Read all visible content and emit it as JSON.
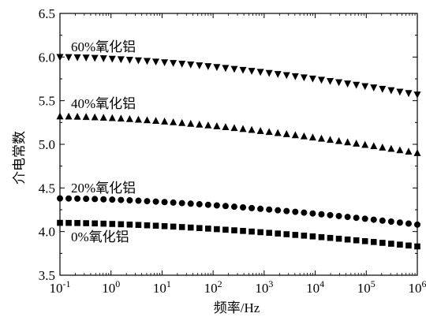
{
  "chart_data": {
    "type": "scatter",
    "title": "",
    "xlabel": "频率/Hz",
    "ylabel": "介电常数",
    "xscale": "log",
    "xlim": [
      0.1,
      1000000
    ],
    "ylim": [
      3.5,
      6.5
    ],
    "grid": false,
    "legend": "none (inline series labels)",
    "x_ticks": [
      {
        "value": 0.1,
        "base": "10",
        "exp": "-1"
      },
      {
        "value": 1,
        "base": "10",
        "exp": "0"
      },
      {
        "value": 10,
        "base": "10",
        "exp": "1"
      },
      {
        "value": 100,
        "base": "10",
        "exp": "2"
      },
      {
        "value": 1000,
        "base": "10",
        "exp": "3"
      },
      {
        "value": 10000,
        "base": "10",
        "exp": "4"
      },
      {
        "value": 100000,
        "base": "10",
        "exp": "5"
      },
      {
        "value": 1000000,
        "base": "10",
        "exp": "6"
      }
    ],
    "y_ticks": [
      "3.5",
      "4.0",
      "4.5",
      "5.0",
      "5.5",
      "6.0",
      "6.5"
    ],
    "series": [
      {
        "name": "60%氧化铝",
        "marker": "triangle-down",
        "y_start": 6.0,
        "y_end": 5.57
      },
      {
        "name": "40%氧化铝",
        "marker": "triangle-up",
        "y_start": 5.32,
        "y_end": 4.9
      },
      {
        "name": "20%氧化铝",
        "marker": "circle",
        "y_start": 4.38,
        "y_end": 4.08
      },
      {
        "name": "0%氧化铝",
        "marker": "square",
        "y_start": 4.1,
        "y_end": 3.83
      }
    ],
    "points_per_series": 42
  }
}
